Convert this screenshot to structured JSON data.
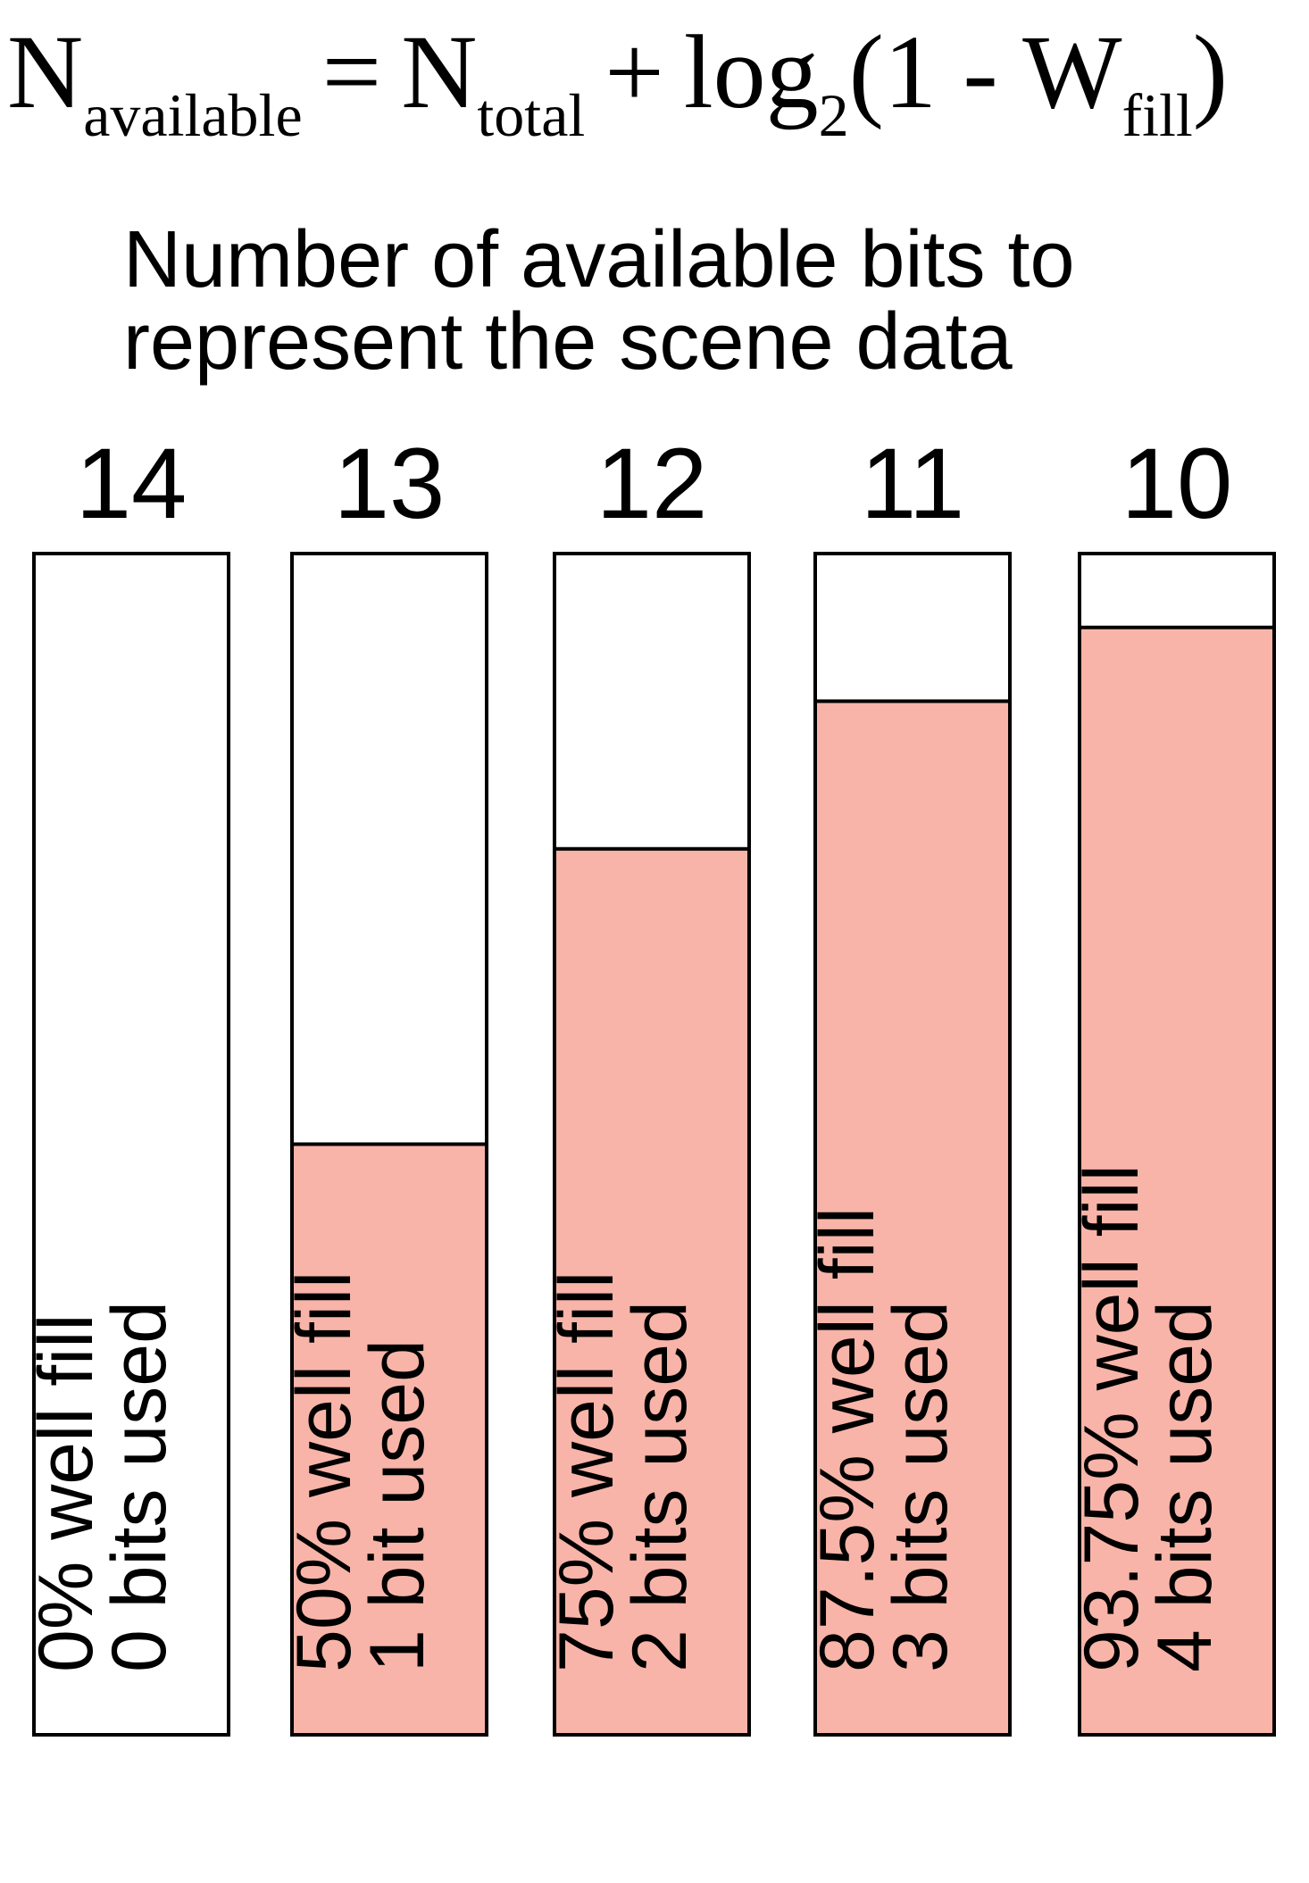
{
  "formula": {
    "lhs_main": "N",
    "lhs_sub": "available",
    "equals": "=",
    "rhs_main": "N",
    "rhs_sub": "total",
    "plus": "+",
    "log": "log",
    "log_base": "2",
    "paren_open": "(1 - ",
    "w_main": "W",
    "w_sub": "fill",
    "paren_close": ")"
  },
  "subtitle": {
    "line1": "Number of available bits to",
    "line2": "represent the scene data"
  },
  "colors": {
    "fill": "#f8b4a8",
    "border": "#000000",
    "empty": "#ffffff"
  },
  "bars": [
    {
      "bits": "14",
      "fill_fraction": 0.0,
      "line1": "0% well fill",
      "line2": "0 bits used"
    },
    {
      "bits": "13",
      "fill_fraction": 0.5,
      "line1": "50% well fill",
      "line2": "1 bit used"
    },
    {
      "bits": "12",
      "fill_fraction": 0.75,
      "line1": "75% well fill",
      "line2": "2 bits used"
    },
    {
      "bits": "11",
      "fill_fraction": 0.875,
      "line1": "87.5% well fill",
      "line2": "3 bits used"
    },
    {
      "bits": "10",
      "fill_fraction": 0.9375,
      "line1": "93.75% well fill",
      "line2": "4 bits used"
    }
  ]
}
